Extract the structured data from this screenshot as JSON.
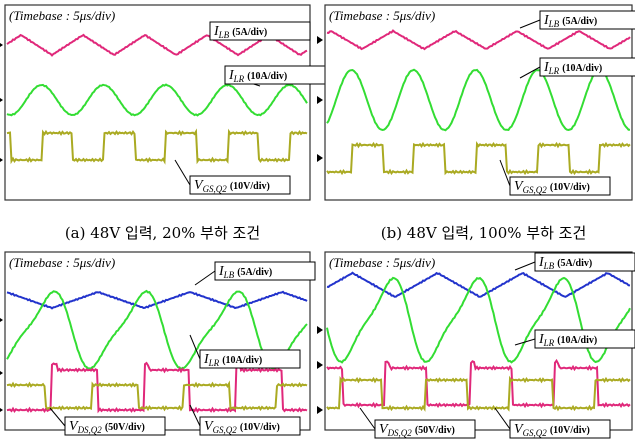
{
  "panels": [
    {
      "timebase": "(Timebase : 5μs/div)",
      "labels": [
        {
          "symbol": "I",
          "subscript": "LB",
          "scale": "(5A/div)"
        },
        {
          "symbol": "I",
          "subscript": "LR",
          "scale": "(10A/div)"
        },
        {
          "symbol": "V",
          "subscript": "GS,Q2",
          "scale": "(10V/div)"
        }
      ],
      "caption": "(a) 48V 입력, 20% 부하 조건"
    },
    {
      "timebase": "(Timebase : 5μs/div)",
      "labels": [
        {
          "symbol": "I",
          "subscript": "LB",
          "scale": "(5A/div)"
        },
        {
          "symbol": "I",
          "subscript": "LR",
          "scale": "(10A/div)"
        },
        {
          "symbol": "V",
          "subscript": "GS,Q2",
          "scale": "(10V/div)"
        }
      ],
      "caption": "(b) 48V 입력, 100% 부하 조건"
    },
    {
      "timebase": "(Timebase : 5μs/div)",
      "labels": [
        {
          "symbol": "I",
          "subscript": "LB",
          "scale": "(5A/div)"
        },
        {
          "symbol": "I",
          "subscript": "LR",
          "scale": "(10A/div)"
        },
        {
          "symbol": "V",
          "subscript": "DS,Q2",
          "scale": "(50V/div)"
        },
        {
          "symbol": "V",
          "subscript": "GS,Q2",
          "scale": "(10V/div)"
        }
      ]
    },
    {
      "timebase": "(Timebase : 5μs/div)",
      "labels": [
        {
          "symbol": "I",
          "subscript": "LB",
          "scale": "(5A/div)"
        },
        {
          "symbol": "I",
          "subscript": "LR",
          "scale": "(10A/div)"
        },
        {
          "symbol": "V",
          "subscript": "DS,Q2",
          "scale": "(50V/div)"
        },
        {
          "symbol": "V",
          "subscript": "GS,Q2",
          "scale": "(10V/div)"
        }
      ]
    }
  ]
}
